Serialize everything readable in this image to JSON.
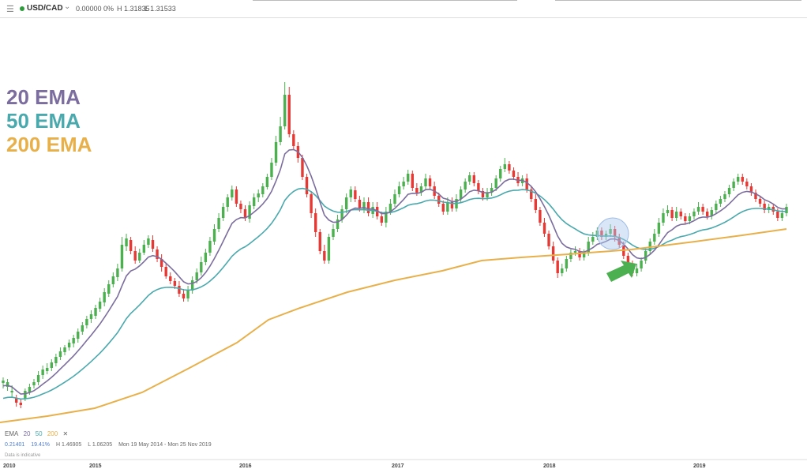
{
  "toolbar": {
    "menu_icon": "hamburger-icon",
    "symbol": "USD/CAD",
    "price": "0.00000",
    "change": "0%",
    "high": "H 1.31835",
    "low": "L 1.31533",
    "status_color": "#2e9b3c"
  },
  "legend": [
    {
      "label": "20 EMA",
      "color": "#7b6e9e"
    },
    {
      "label": "50 EMA",
      "color": "#4aa9ad"
    },
    {
      "label": "200 EMA",
      "color": "#e8b04a"
    }
  ],
  "indicator": {
    "name": "EMA",
    "p1": "20",
    "p2": "50",
    "p3": "200",
    "close_icon": "close-icon"
  },
  "stats": {
    "v1": "0.21401",
    "v2": "19.41%",
    "high": "H 1.46905",
    "low": "L 1.06205",
    "range": "Mon 19 May 2014 - Mon 25 Nov 2019"
  },
  "note": "Data is indicative",
  "colors": {
    "up": "#4caf50",
    "down": "#e53935",
    "arrow": "#4caf50",
    "circle": "#aac8ee"
  },
  "chart_data": {
    "type": "candlestick",
    "x_ticks": [
      "2010",
      "2015",
      "2016",
      "2017",
      "2018",
      "2019"
    ],
    "ema_periods": [
      20,
      50,
      200
    ],
    "candles": [
      [
        0,
        485,
        482,
        492,
        478
      ],
      [
        1,
        490,
        484,
        495,
        480
      ],
      [
        2,
        497,
        495,
        503,
        488
      ],
      [
        3,
        504,
        510,
        515,
        500
      ],
      [
        4,
        510,
        513,
        517,
        506
      ],
      [
        5,
        505,
        495,
        508,
        492
      ],
      [
        6,
        497,
        490,
        500,
        486
      ],
      [
        7,
        488,
        484,
        492,
        480
      ],
      [
        8,
        484,
        475,
        488,
        470
      ],
      [
        9,
        475,
        468,
        480,
        463
      ],
      [
        10,
        470,
        466,
        474,
        460
      ],
      [
        11,
        466,
        459,
        470,
        455
      ],
      [
        12,
        460,
        452,
        464,
        448
      ],
      [
        13,
        452,
        445,
        456,
        440
      ],
      [
        14,
        446,
        440,
        450,
        437
      ],
      [
        15,
        440,
        434,
        444,
        430
      ],
      [
        16,
        435,
        428,
        440,
        424
      ],
      [
        17,
        429,
        420,
        434,
        416
      ],
      [
        18,
        420,
        412,
        424,
        408
      ],
      [
        19,
        412,
        404,
        416,
        400
      ],
      [
        20,
        404,
        398,
        409,
        393
      ],
      [
        21,
        400,
        390,
        404,
        386
      ],
      [
        22,
        391,
        382,
        395,
        377
      ],
      [
        23,
        383,
        370,
        388,
        365
      ],
      [
        24,
        372,
        360,
        376,
        355
      ],
      [
        25,
        360,
        350,
        364,
        345
      ],
      [
        26,
        351,
        340,
        356,
        334
      ],
      [
        27,
        340,
        310,
        344,
        300
      ],
      [
        28,
        312,
        302,
        318,
        296
      ],
      [
        29,
        304,
        318,
        322,
        300
      ],
      [
        30,
        318,
        330,
        334,
        312
      ],
      [
        31,
        330,
        320,
        333,
        315
      ],
      [
        32,
        320,
        310,
        323,
        304
      ],
      [
        33,
        310,
        302,
        314,
        298
      ],
      [
        34,
        304,
        315,
        319,
        298
      ],
      [
        35,
        316,
        328,
        332,
        312
      ],
      [
        36,
        328,
        338,
        344,
        322
      ],
      [
        37,
        338,
        350,
        353,
        334
      ],
      [
        38,
        350,
        356,
        360,
        345
      ],
      [
        39,
        356,
        362,
        366,
        352
      ],
      [
        40,
        362,
        372,
        376,
        356
      ],
      [
        41,
        372,
        378,
        382,
        366
      ],
      [
        42,
        378,
        368,
        382,
        362
      ],
      [
        43,
        368,
        355,
        372,
        350
      ],
      [
        44,
        355,
        345,
        359,
        340
      ],
      [
        45,
        345,
        332,
        349,
        325
      ],
      [
        46,
        332,
        320,
        336,
        315
      ],
      [
        47,
        320,
        305,
        324,
        300
      ],
      [
        48,
        306,
        290,
        310,
        284
      ],
      [
        49,
        290,
        276,
        294,
        270
      ],
      [
        50,
        276,
        262,
        280,
        257
      ],
      [
        51,
        262,
        250,
        268,
        246
      ],
      [
        52,
        250,
        240,
        254,
        235
      ],
      [
        53,
        240,
        258,
        262,
        236
      ],
      [
        54,
        258,
        265,
        270,
        254
      ],
      [
        55,
        265,
        276,
        280,
        260
      ],
      [
        56,
        277,
        260,
        282,
        255
      ],
      [
        57,
        261,
        250,
        265,
        245
      ],
      [
        58,
        250,
        245,
        256,
        240
      ],
      [
        59,
        246,
        236,
        250,
        232
      ],
      [
        60,
        237,
        224,
        240,
        220
      ],
      [
        61,
        224,
        206,
        228,
        200
      ],
      [
        62,
        206,
        180,
        210,
        172
      ],
      [
        63,
        180,
        160,
        184,
        148
      ],
      [
        64,
        160,
        120,
        164,
        104
      ],
      [
        65,
        120,
        170,
        174,
        110
      ],
      [
        66,
        170,
        185,
        190,
        165
      ],
      [
        67,
        185,
        200,
        206,
        180
      ],
      [
        68,
        200,
        224,
        228,
        196
      ],
      [
        69,
        224,
        246,
        250,
        220
      ],
      [
        70,
        246,
        270,
        276,
        242
      ],
      [
        71,
        270,
        294,
        300,
        264
      ],
      [
        72,
        294,
        318,
        322,
        290
      ],
      [
        73,
        318,
        330,
        334,
        310
      ],
      [
        74,
        330,
        300,
        334,
        296
      ],
      [
        75,
        300,
        290,
        304,
        284
      ],
      [
        76,
        290,
        278,
        294,
        272
      ],
      [
        77,
        278,
        265,
        282,
        260
      ],
      [
        78,
        265,
        250,
        270,
        245
      ],
      [
        79,
        250,
        240,
        256,
        236
      ],
      [
        80,
        241,
        252,
        256,
        236
      ],
      [
        81,
        253,
        264,
        268,
        248
      ],
      [
        82,
        265,
        256,
        270,
        250
      ],
      [
        83,
        256,
        270,
        274,
        250
      ],
      [
        84,
        271,
        262,
        276,
        256
      ],
      [
        85,
        262,
        274,
        278,
        256
      ],
      [
        86,
        274,
        282,
        286,
        268
      ],
      [
        87,
        282,
        268,
        288,
        262
      ],
      [
        88,
        268,
        258,
        272,
        252
      ],
      [
        89,
        258,
        246,
        262,
        240
      ],
      [
        90,
        246,
        236,
        250,
        230
      ],
      [
        91,
        236,
        230,
        240,
        224
      ],
      [
        92,
        230,
        220,
        234,
        215
      ],
      [
        93,
        220,
        238,
        242,
        216
      ],
      [
        94,
        238,
        244,
        248,
        232
      ],
      [
        95,
        244,
        236,
        248,
        232
      ],
      [
        96,
        236,
        226,
        240,
        220
      ],
      [
        97,
        226,
        236,
        240,
        222
      ],
      [
        98,
        236,
        248,
        252,
        230
      ],
      [
        99,
        248,
        258,
        262,
        244
      ],
      [
        100,
        258,
        268,
        272,
        254
      ],
      [
        101,
        268,
        256,
        272,
        250
      ],
      [
        102,
        256,
        264,
        268,
        250
      ],
      [
        103,
        264,
        252,
        268,
        246
      ],
      [
        104,
        252,
        240,
        256,
        236
      ],
      [
        105,
        240,
        230,
        244,
        226
      ],
      [
        106,
        230,
        222,
        234,
        218
      ],
      [
        107,
        222,
        232,
        236,
        218
      ],
      [
        108,
        232,
        242,
        246,
        228
      ],
      [
        109,
        242,
        250,
        254,
        238
      ],
      [
        110,
        250,
        244,
        254,
        238
      ],
      [
        111,
        244,
        238,
        248,
        232
      ],
      [
        112,
        238,
        226,
        242,
        222
      ],
      [
        113,
        226,
        214,
        230,
        210
      ],
      [
        114,
        214,
        208,
        218,
        200
      ],
      [
        115,
        208,
        216,
        220,
        204
      ],
      [
        116,
        216,
        224,
        228,
        212
      ],
      [
        117,
        224,
        232,
        236,
        218
      ],
      [
        118,
        232,
        226,
        236,
        222
      ],
      [
        119,
        226,
        240,
        244,
        220
      ],
      [
        120,
        240,
        252,
        256,
        236
      ],
      [
        121,
        252,
        266,
        270,
        246
      ],
      [
        122,
        266,
        282,
        286,
        262
      ],
      [
        123,
        282,
        296,
        300,
        276
      ],
      [
        124,
        296,
        312,
        316,
        292
      ],
      [
        125,
        312,
        330,
        334,
        306
      ],
      [
        126,
        330,
        346,
        352,
        326
      ],
      [
        127,
        346,
        340,
        350,
        334
      ],
      [
        128,
        340,
        328,
        344,
        324
      ],
      [
        129,
        328,
        320,
        332,
        316
      ],
      [
        130,
        320,
        318,
        324,
        312
      ],
      [
        131,
        318,
        326,
        330,
        314
      ],
      [
        132,
        326,
        320,
        330,
        316
      ],
      [
        133,
        320,
        306,
        324,
        300
      ],
      [
        134,
        306,
        300,
        310,
        294
      ],
      [
        135,
        300,
        292,
        304,
        288
      ],
      [
        136,
        292,
        300,
        304,
        288
      ],
      [
        137,
        300,
        296,
        304,
        292
      ],
      [
        138,
        296,
        290,
        300,
        284
      ],
      [
        139,
        290,
        300,
        306,
        286
      ],
      [
        140,
        300,
        310,
        314,
        296
      ],
      [
        141,
        310,
        324,
        328,
        306
      ],
      [
        142,
        324,
        336,
        340,
        320
      ],
      [
        143,
        336,
        346,
        350,
        330
      ],
      [
        144,
        346,
        340,
        350,
        334
      ],
      [
        145,
        340,
        330,
        344,
        326
      ],
      [
        146,
        330,
        318,
        334,
        314
      ],
      [
        147,
        318,
        306,
        322,
        302
      ],
      [
        148,
        306,
        296,
        310,
        290
      ],
      [
        149,
        296,
        282,
        300,
        276
      ],
      [
        150,
        282,
        270,
        286,
        264
      ],
      [
        151,
        270,
        266,
        274,
        260
      ],
      [
        152,
        266,
        276,
        280,
        262
      ],
      [
        153,
        276,
        268,
        280,
        262
      ],
      [
        154,
        268,
        274,
        278,
        264
      ],
      [
        155,
        274,
        280,
        284,
        270
      ],
      [
        156,
        280,
        274,
        284,
        270
      ],
      [
        157,
        274,
        268,
        278,
        264
      ],
      [
        158,
        268,
        262,
        272,
        256
      ],
      [
        159,
        262,
        268,
        272,
        258
      ],
      [
        160,
        268,
        274,
        278,
        264
      ],
      [
        161,
        274,
        266,
        278,
        262
      ],
      [
        162,
        266,
        258,
        270,
        254
      ],
      [
        163,
        258,
        252,
        262,
        248
      ],
      [
        164,
        252,
        246,
        256,
        242
      ],
      [
        165,
        246,
        238,
        250,
        234
      ],
      [
        166,
        238,
        230,
        242,
        226
      ],
      [
        167,
        230,
        224,
        234,
        220
      ],
      [
        168,
        224,
        230,
        234,
        220
      ],
      [
        169,
        230,
        236,
        240,
        226
      ],
      [
        170,
        236,
        244,
        248,
        232
      ],
      [
        171,
        244,
        252,
        256,
        240
      ],
      [
        172,
        252,
        258,
        262,
        248
      ],
      [
        173,
        258,
        266,
        270,
        254
      ],
      [
        174,
        266,
        262,
        270,
        258
      ],
      [
        175,
        262,
        268,
        272,
        258
      ],
      [
        176,
        268,
        276,
        280,
        264
      ],
      [
        177,
        276,
        270,
        280,
        266
      ],
      [
        178,
        270,
        262,
        274,
        258
      ]
    ]
  }
}
